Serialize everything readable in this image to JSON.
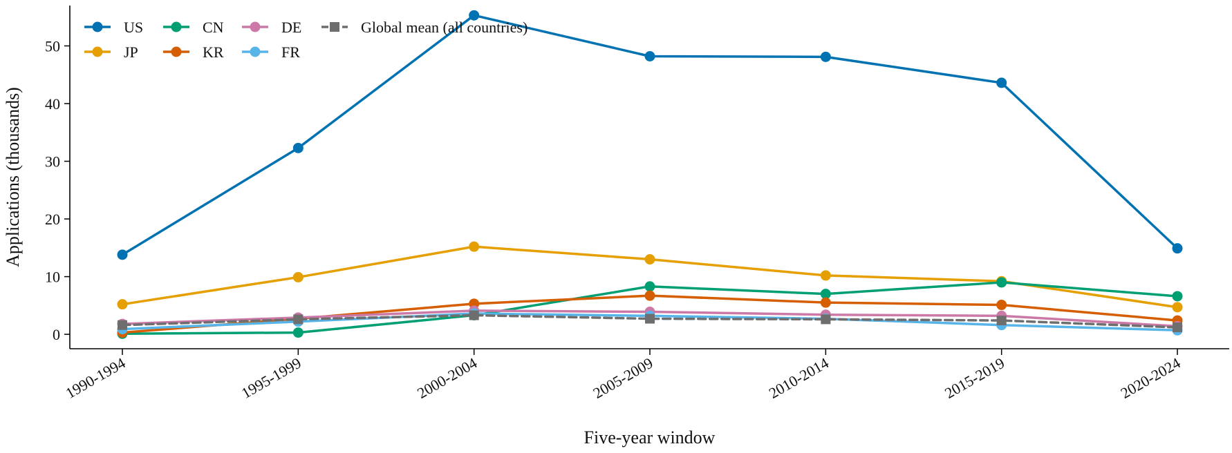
{
  "chart_data": {
    "type": "line",
    "title": "",
    "xlabel": "Five-year window",
    "ylabel": "Applications (thousands)",
    "categories": [
      "1990-1994",
      "1995-1999",
      "2000-2004",
      "2005-2009",
      "2010-2014",
      "2015-2019",
      "2020-2024"
    ],
    "ylim": [
      -2.5,
      57
    ],
    "yticks": [
      0,
      10,
      20,
      30,
      40,
      50
    ],
    "grid": false,
    "legend_placement": "top-left",
    "series": [
      {
        "name": "US",
        "color": "#0072b2",
        "marker": "circle",
        "dashed": false,
        "values": [
          13.8,
          32.3,
          55.3,
          48.2,
          48.1,
          43.6,
          14.9
        ]
      },
      {
        "name": "JP",
        "color": "#e69f00",
        "marker": "circle",
        "dashed": false,
        "values": [
          5.2,
          9.9,
          15.2,
          13.0,
          10.2,
          9.2,
          4.7
        ]
      },
      {
        "name": "CN",
        "color": "#009e73",
        "marker": "circle",
        "dashed": false,
        "values": [
          0.1,
          0.3,
          3.3,
          8.3,
          7.0,
          9.0,
          6.6
        ]
      },
      {
        "name": "KR",
        "color": "#d55e00",
        "marker": "circle",
        "dashed": false,
        "values": [
          0.3,
          2.7,
          5.3,
          6.7,
          5.5,
          5.1,
          2.4
        ]
      },
      {
        "name": "DE",
        "color": "#cc79a7",
        "marker": "circle",
        "dashed": false,
        "values": [
          1.8,
          2.9,
          4.1,
          3.9,
          3.4,
          3.2,
          1.4
        ]
      },
      {
        "name": "FR",
        "color": "#56b4e9",
        "marker": "circle",
        "dashed": false,
        "values": [
          0.9,
          2.2,
          3.6,
          3.2,
          2.7,
          1.6,
          0.7
        ]
      },
      {
        "name": "Global mean (all countries)",
        "color": "#6e6e6e",
        "marker": "square",
        "dashed": true,
        "values": [
          1.6,
          2.6,
          3.3,
          2.7,
          2.6,
          2.4,
          1.2
        ]
      }
    ]
  }
}
